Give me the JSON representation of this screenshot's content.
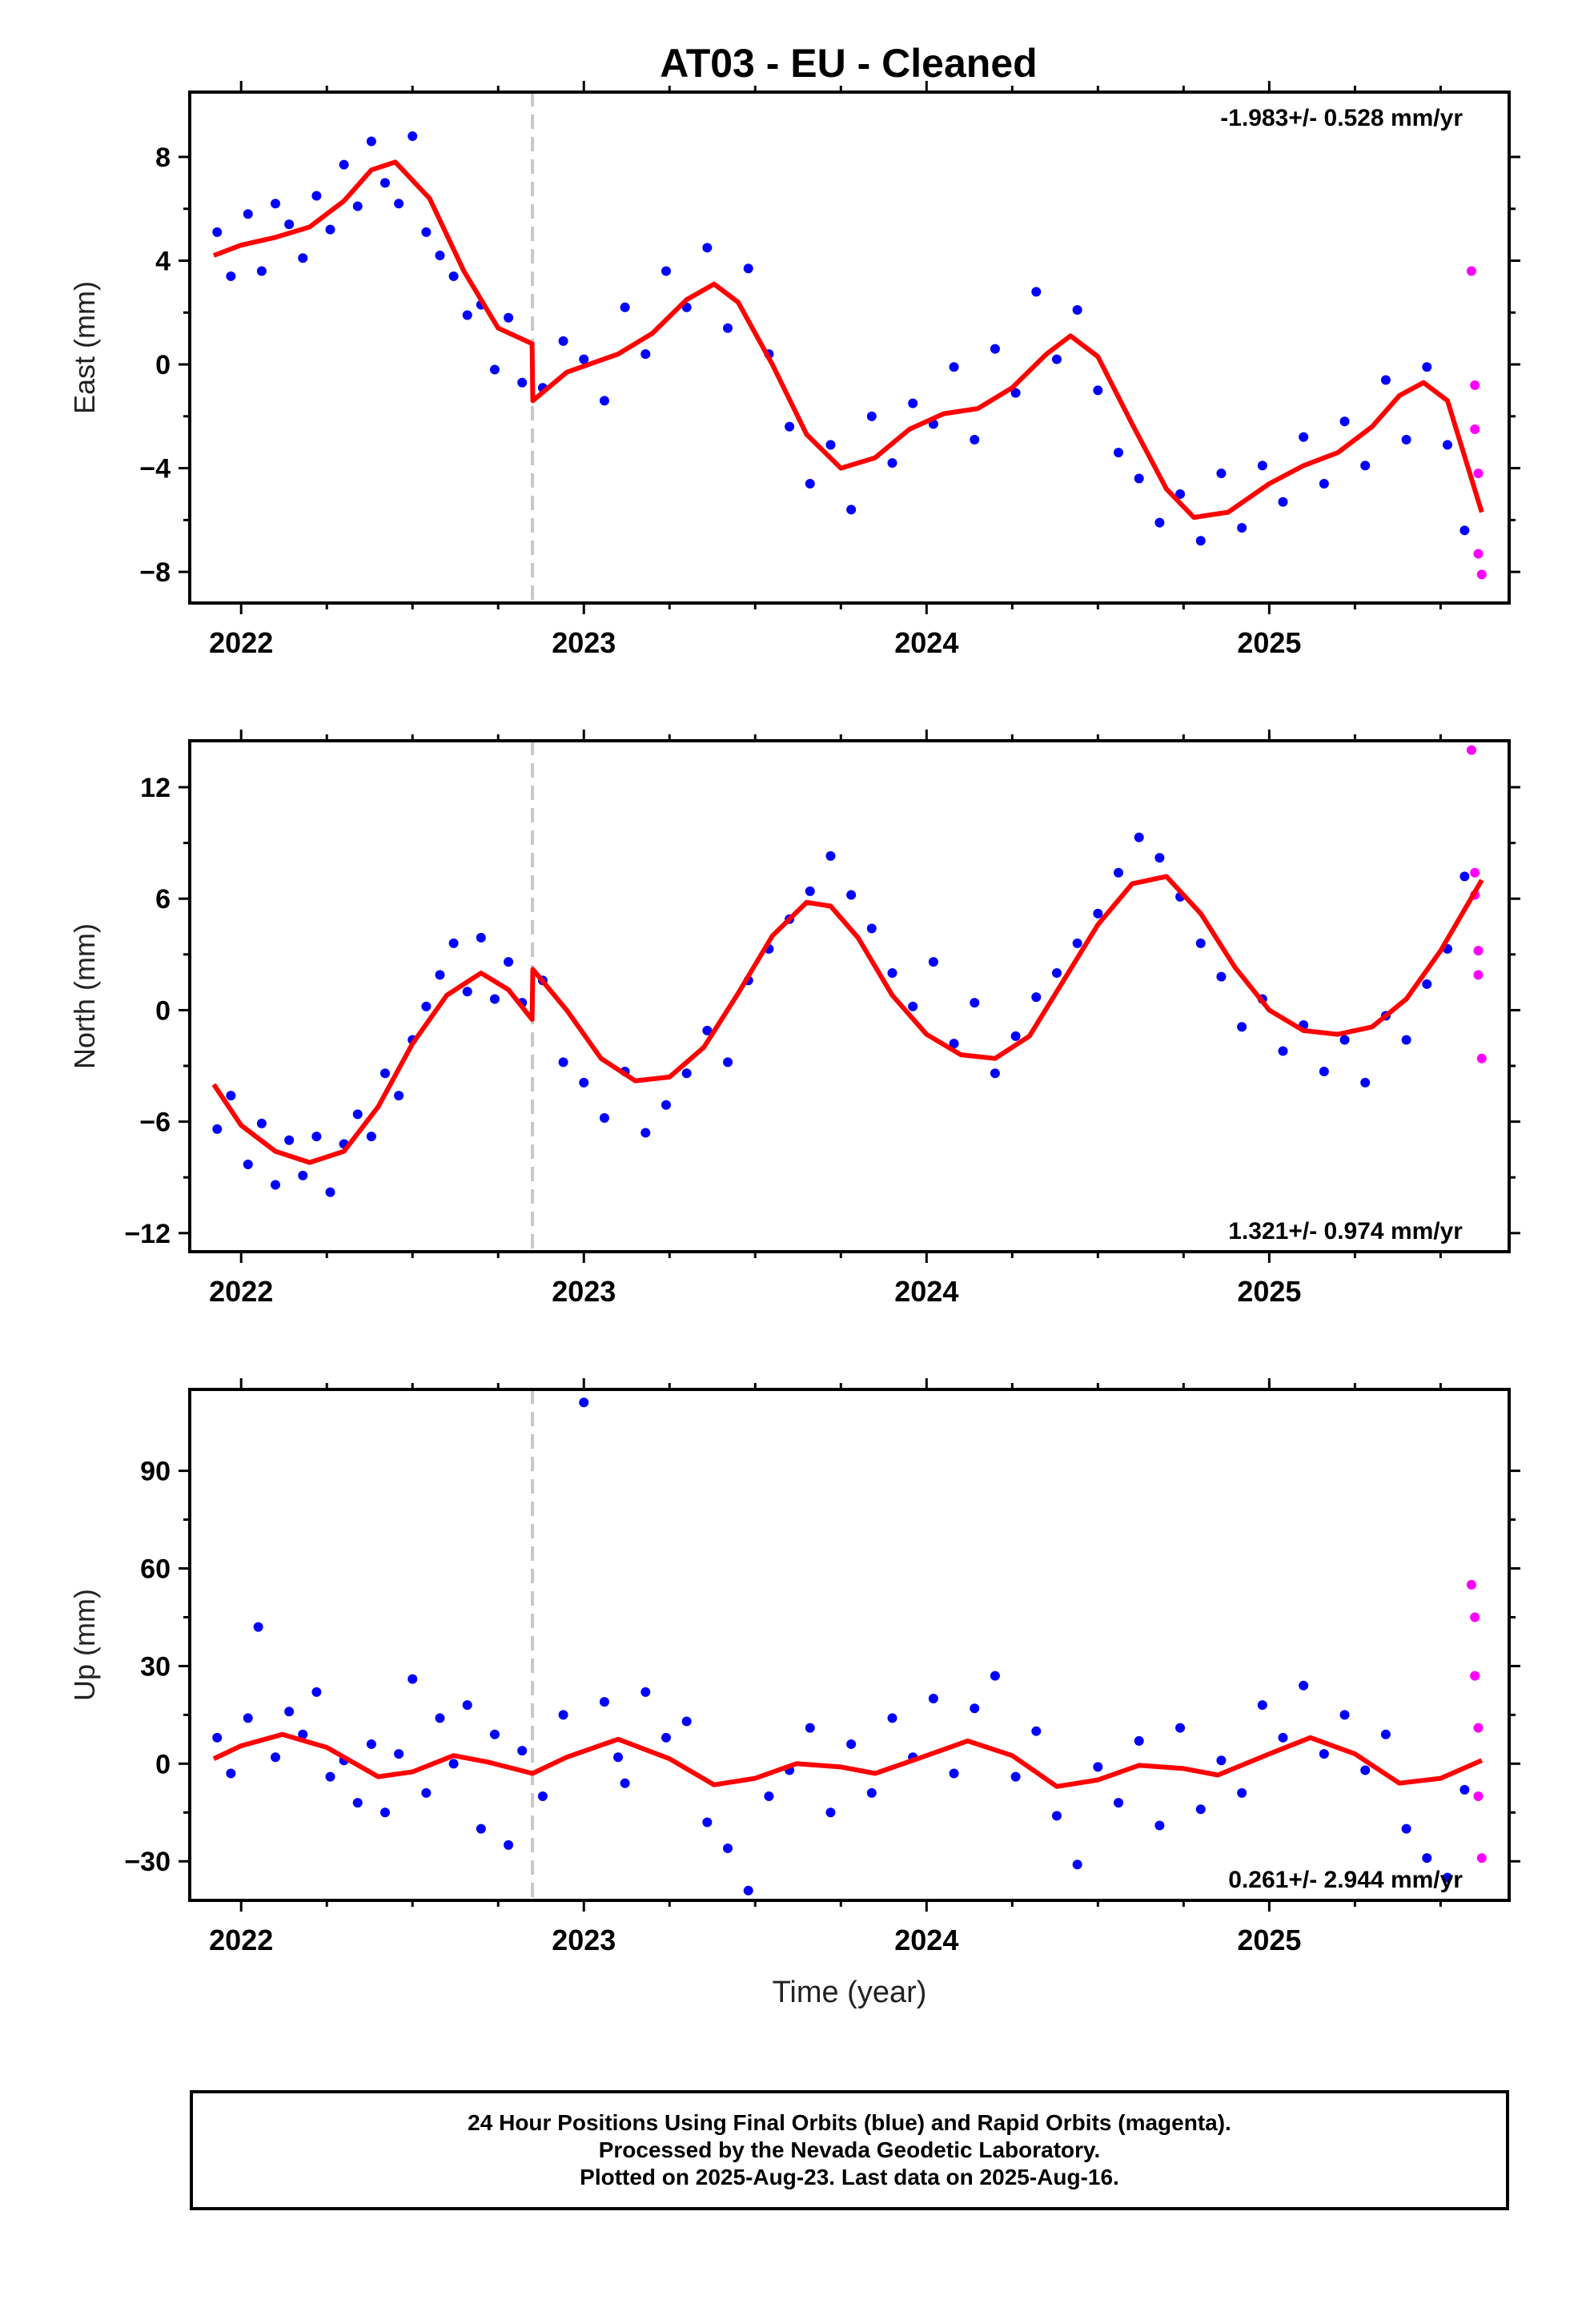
{
  "figure": {
    "title": "AT03  - EU - Cleaned",
    "xlabel": "Time (year)",
    "footer": [
      "24 Hour Positions Using Final Orbits (blue) and Rapid Orbits (magenta).",
      "Processed by the Nevada Geodetic Laboratory.",
      "Plotted on 2025-Aug-23. Last data on 2025-Aug-16."
    ]
  },
  "colors": {
    "final": "#0000ff",
    "rapid": "#ff00ff",
    "model": "#ff0000",
    "break_line": "#c8c8c8",
    "axis": "#000000"
  },
  "chart_data": [
    {
      "type": "scatter",
      "component": "east",
      "ylabel": "East (mm)",
      "rate_text": "-1.983+/- 0.528 mm/yr",
      "rate_position": "top-right",
      "xlim": [
        2021.85,
        2025.7
      ],
      "ylim": [
        -9.2,
        10.5
      ],
      "xticks": [
        2022,
        2023,
        2024,
        2025
      ],
      "yticks": [
        -8,
        -4,
        0,
        4,
        8
      ],
      "ytick_labels": [
        "−8",
        "−4",
        "0",
        "4",
        "8"
      ],
      "break_epoch": 2022.85,
      "model_line": {
        "x": [
          2021.92,
          2022.0,
          2022.1,
          2022.2,
          2022.3,
          2022.38,
          2022.45,
          2022.55,
          2022.65,
          2022.75,
          2022.849,
          2022.851,
          2022.95,
          2023.1,
          2023.2,
          2023.3,
          2023.38,
          2023.45,
          2023.55,
          2023.65,
          2023.75,
          2023.85,
          2023.95,
          2024.05,
          2024.15,
          2024.25,
          2024.35,
          2024.42,
          2024.5,
          2024.6,
          2024.7,
          2024.78,
          2024.88,
          2025.0,
          2025.1,
          2025.2,
          2025.3,
          2025.38,
          2025.45,
          2025.52,
          2025.62
        ],
        "y": [
          4.2,
          4.6,
          4.9,
          5.3,
          6.3,
          7.5,
          7.8,
          6.4,
          3.6,
          1.4,
          0.8,
          -1.4,
          -0.3,
          0.4,
          1.2,
          2.5,
          3.1,
          2.4,
          0.0,
          -2.7,
          -4.0,
          -3.6,
          -2.5,
          -1.9,
          -1.7,
          -0.9,
          0.4,
          1.1,
          0.3,
          -2.3,
          -4.8,
          -5.9,
          -5.7,
          -4.6,
          -3.9,
          -3.4,
          -2.4,
          -1.2,
          -0.7,
          -1.4,
          -5.7
        ]
      },
      "series": [
        {
          "name": "Final Orbits (blue)",
          "color": "#0000ff",
          "x": [
            2021.93,
            2021.97,
            2022.02,
            2022.06,
            2022.1,
            2022.14,
            2022.18,
            2022.22,
            2022.26,
            2022.3,
            2022.34,
            2022.38,
            2022.42,
            2022.46,
            2022.5,
            2022.54,
            2022.58,
            2022.62,
            2022.66,
            2022.7,
            2022.74,
            2022.78,
            2022.82,
            2022.88,
            2022.94,
            2023.0,
            2023.06,
            2023.12,
            2023.18,
            2023.24,
            2023.3,
            2023.36,
            2023.42,
            2023.48,
            2023.54,
            2023.6,
            2023.66,
            2023.72,
            2023.78,
            2023.84,
            2023.9,
            2023.96,
            2024.02,
            2024.08,
            2024.14,
            2024.2,
            2024.26,
            2024.32,
            2024.38,
            2024.44,
            2024.5,
            2024.56,
            2024.62,
            2024.68,
            2024.74,
            2024.8,
            2024.86,
            2024.92,
            2024.98,
            2025.04,
            2025.1,
            2025.16,
            2025.22,
            2025.28,
            2025.34,
            2025.4,
            2025.46,
            2025.52,
            2025.57
          ],
          "y": [
            5.1,
            3.4,
            5.8,
            3.6,
            6.2,
            5.4,
            4.1,
            6.5,
            5.2,
            7.7,
            6.1,
            8.6,
            7.0,
            6.2,
            8.8,
            5.1,
            4.2,
            3.4,
            1.9,
            2.3,
            -0.2,
            1.8,
            -0.7,
            -0.9,
            0.9,
            0.2,
            -1.4,
            2.2,
            0.4,
            3.6,
            2.2,
            4.5,
            1.4,
            3.7,
            0.4,
            -2.4,
            -4.6,
            -3.1,
            -5.6,
            -2.0,
            -3.8,
            -1.5,
            -2.3,
            -0.1,
            -2.9,
            0.6,
            -1.1,
            2.8,
            0.2,
            2.1,
            -1.0,
            -3.4,
            -4.4,
            -6.1,
            -5.0,
            -6.8,
            -4.2,
            -6.3,
            -3.9,
            -5.3,
            -2.8,
            -4.6,
            -2.2,
            -3.9,
            -0.6,
            -2.9,
            -0.1,
            -3.1,
            -6.4
          ]
        },
        {
          "name": "Rapid Orbits (magenta)",
          "color": "#ff00ff",
          "x": [
            2025.59,
            2025.6,
            2025.6,
            2025.61,
            2025.61,
            2025.62
          ],
          "y": [
            3.6,
            -0.8,
            -2.5,
            -4.2,
            -7.3,
            -8.1
          ]
        }
      ]
    },
    {
      "type": "scatter",
      "component": "north",
      "ylabel": "North (mm)",
      "rate_text": "1.321+/- 0.974 mm/yr",
      "rate_position": "bottom-right",
      "xlim": [
        2021.85,
        2025.7
      ],
      "ylim": [
        -13.0,
        14.5
      ],
      "xticks": [
        2022,
        2023,
        2024,
        2025
      ],
      "yticks": [
        -12,
        -6,
        0,
        6,
        12
      ],
      "ytick_labels": [
        "−12",
        "−6",
        "0",
        "6",
        "12"
      ],
      "break_epoch": 2022.85,
      "model_line": {
        "x": [
          2021.92,
          2022.0,
          2022.1,
          2022.2,
          2022.3,
          2022.4,
          2022.5,
          2022.6,
          2022.7,
          2022.78,
          2022.849,
          2022.851,
          2022.95,
          2023.05,
          2023.15,
          2023.25,
          2023.35,
          2023.45,
          2023.55,
          2023.65,
          2023.72,
          2023.8,
          2023.9,
          2024.0,
          2024.1,
          2024.2,
          2024.3,
          2024.4,
          2024.5,
          2024.6,
          2024.7,
          2024.8,
          2024.9,
          2025.0,
          2025.1,
          2025.2,
          2025.3,
          2025.4,
          2025.5,
          2025.62
        ],
        "y": [
          -4.0,
          -6.2,
          -7.6,
          -8.2,
          -7.6,
          -5.2,
          -1.8,
          0.8,
          2.0,
          1.1,
          -0.5,
          2.2,
          0.0,
          -2.6,
          -3.8,
          -3.6,
          -2.0,
          0.9,
          4.0,
          5.8,
          5.6,
          3.9,
          0.8,
          -1.3,
          -2.4,
          -2.6,
          -1.4,
          1.6,
          4.6,
          6.8,
          7.2,
          5.2,
          2.3,
          0.0,
          -1.1,
          -1.3,
          -0.9,
          0.6,
          3.2,
          7.0
        ]
      },
      "series": [
        {
          "name": "Final Orbits (blue)",
          "color": "#0000ff",
          "x": [
            2021.93,
            2021.97,
            2022.02,
            2022.06,
            2022.1,
            2022.14,
            2022.18,
            2022.22,
            2022.26,
            2022.3,
            2022.34,
            2022.38,
            2022.42,
            2022.46,
            2022.5,
            2022.54,
            2022.58,
            2022.62,
            2022.66,
            2022.7,
            2022.74,
            2022.78,
            2022.82,
            2022.88,
            2022.94,
            2023.0,
            2023.06,
            2023.12,
            2023.18,
            2023.24,
            2023.3,
            2023.36,
            2023.42,
            2023.48,
            2023.54,
            2023.6,
            2023.66,
            2023.72,
            2023.78,
            2023.84,
            2023.9,
            2023.96,
            2024.02,
            2024.08,
            2024.14,
            2024.2,
            2024.26,
            2024.32,
            2024.38,
            2024.44,
            2024.5,
            2024.56,
            2024.62,
            2024.68,
            2024.74,
            2024.8,
            2024.86,
            2024.92,
            2024.98,
            2025.04,
            2025.1,
            2025.16,
            2025.22,
            2025.28,
            2025.34,
            2025.4,
            2025.46,
            2025.52,
            2025.57
          ],
          "y": [
            -6.4,
            -4.6,
            -8.3,
            -6.1,
            -9.4,
            -7.0,
            -8.9,
            -6.8,
            -9.8,
            -7.2,
            -5.6,
            -6.8,
            -3.4,
            -4.6,
            -1.6,
            0.2,
            1.9,
            3.6,
            1.0,
            3.9,
            0.6,
            2.6,
            0.4,
            1.6,
            -2.8,
            -3.9,
            -5.8,
            -3.3,
            -6.6,
            -5.1,
            -3.4,
            -1.1,
            -2.8,
            1.6,
            3.3,
            4.9,
            6.4,
            8.3,
            6.2,
            4.4,
            2.0,
            0.2,
            2.6,
            -1.8,
            0.4,
            -3.4,
            -1.4,
            0.7,
            2.0,
            3.6,
            5.2,
            7.4,
            9.3,
            8.2,
            6.1,
            3.6,
            1.8,
            -0.9,
            0.6,
            -2.2,
            -0.8,
            -3.3,
            -1.6,
            -3.9,
            -0.3,
            -1.6,
            1.4,
            3.3,
            7.2
          ]
        },
        {
          "name": "Rapid Orbits (magenta)",
          "color": "#ff00ff",
          "x": [
            2025.59,
            2025.6,
            2025.6,
            2025.61,
            2025.61,
            2025.62
          ],
          "y": [
            14.0,
            7.4,
            6.2,
            3.2,
            1.9,
            -2.6
          ]
        }
      ]
    },
    {
      "type": "scatter",
      "component": "up",
      "ylabel": "Up (mm)",
      "rate_text": "0.261+/- 2.944 mm/yr",
      "rate_position": "bottom-right",
      "xlim": [
        2021.85,
        2025.7
      ],
      "ylim": [
        -42,
        115
      ],
      "xticks": [
        2022,
        2023,
        2024,
        2025
      ],
      "yticks": [
        -30,
        0,
        30,
        60,
        90
      ],
      "ytick_labels": [
        "−30",
        "0",
        "30",
        "60",
        "90"
      ],
      "break_epoch": 2022.85,
      "model_line": {
        "x": [
          2021.92,
          2022.0,
          2022.12,
          2022.25,
          2022.4,
          2022.5,
          2022.62,
          2022.72,
          2022.85,
          2022.95,
          2023.1,
          2023.25,
          2023.38,
          2023.5,
          2023.62,
          2023.75,
          2023.85,
          2024.0,
          2024.12,
          2024.25,
          2024.38,
          2024.5,
          2024.62,
          2024.75,
          2024.85,
          2025.0,
          2025.12,
          2025.25,
          2025.38,
          2025.5,
          2025.62
        ],
        "y": [
          1.5,
          5.5,
          9.0,
          5.0,
          -4.0,
          -2.5,
          2.5,
          0.5,
          -3.0,
          2.0,
          7.5,
          1.5,
          -6.5,
          -4.5,
          0.0,
          -1.0,
          -3.0,
          2.5,
          7.0,
          2.5,
          -7.0,
          -5.0,
          -0.5,
          -1.5,
          -3.5,
          3.0,
          8.0,
          3.0,
          -6.0,
          -4.5,
          1.0
        ]
      },
      "series": [
        {
          "name": "Final Orbits (blue)",
          "color": "#0000ff",
          "x": [
            2021.93,
            2021.97,
            2022.02,
            2022.05,
            2022.1,
            2022.14,
            2022.18,
            2022.22,
            2022.26,
            2022.3,
            2022.34,
            2022.38,
            2022.42,
            2022.46,
            2022.5,
            2022.54,
            2022.58,
            2022.62,
            2022.66,
            2022.7,
            2022.74,
            2022.78,
            2022.82,
            2022.88,
            2022.94,
            2023.0,
            2023.06,
            2023.1,
            2023.12,
            2023.18,
            2023.24,
            2023.3,
            2023.36,
            2023.42,
            2023.48,
            2023.54,
            2023.6,
            2023.66,
            2023.72,
            2023.78,
            2023.84,
            2023.9,
            2023.96,
            2024.02,
            2024.08,
            2024.14,
            2024.2,
            2024.26,
            2024.32,
            2024.38,
            2024.44,
            2024.5,
            2024.56,
            2024.62,
            2024.68,
            2024.74,
            2024.8,
            2024.86,
            2024.92,
            2024.98,
            2025.04,
            2025.1,
            2025.16,
            2025.22,
            2025.28,
            2025.34,
            2025.4,
            2025.46,
            2025.52,
            2025.57
          ],
          "y": [
            8,
            -3,
            14,
            42,
            2,
            16,
            9,
            22,
            -4,
            1,
            -12,
            6,
            -15,
            3,
            26,
            -9,
            14,
            0,
            18,
            -20,
            9,
            -25,
            4,
            -10,
            15,
            111,
            19,
            2,
            -6,
            22,
            8,
            13,
            -18,
            -26,
            -39,
            -10,
            -2,
            11,
            -15,
            6,
            -9,
            14,
            2,
            20,
            -3,
            17,
            27,
            -4,
            10,
            -16,
            -31,
            -1,
            -12,
            7,
            -19,
            11,
            -14,
            1,
            -9,
            18,
            8,
            24,
            3,
            15,
            -2,
            9,
            -20,
            -29,
            -35,
            -8
          ]
        },
        {
          "name": "Rapid Orbits (magenta)",
          "color": "#ff00ff",
          "x": [
            2025.59,
            2025.6,
            2025.6,
            2025.61,
            2025.61,
            2025.62
          ],
          "y": [
            55,
            45,
            27,
            11,
            -10,
            -29
          ]
        }
      ]
    }
  ]
}
